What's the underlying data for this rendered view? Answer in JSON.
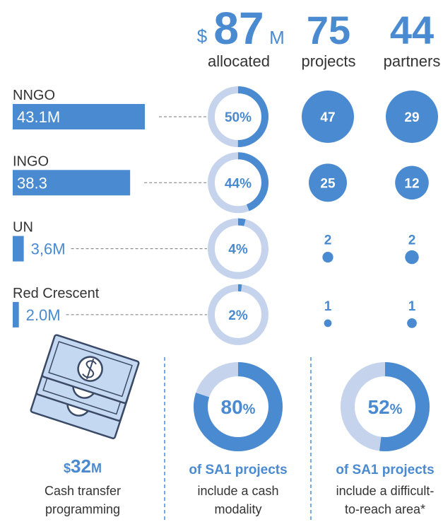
{
  "header": {
    "allocated": {
      "prefix": "$",
      "value": 87,
      "unit": "M",
      "label": "allocated"
    },
    "projects": {
      "value": 75,
      "label": "projects"
    },
    "partners": {
      "value": 44,
      "label": "partners"
    }
  },
  "rows": [
    {
      "name": "NNGO",
      "amount": 43.1,
      "amount_label": "43.1M",
      "share": 50,
      "share_label": "50%",
      "projects": 47,
      "partners": 29
    },
    {
      "name": "INGO",
      "amount": 38.3,
      "amount_label": "38.3",
      "share": 44,
      "share_label": "44%",
      "projects": 25,
      "partners": 12
    },
    {
      "name": "UN",
      "amount": 3.6,
      "amount_label": "3,6M",
      "share": 4,
      "share_label": "4%",
      "projects": 2,
      "partners": 2
    },
    {
      "name": "Red Crescent",
      "amount": 2.0,
      "amount_label": "2.0M",
      "share": 2,
      "share_label": "2%",
      "projects": 1,
      "partners": 1
    }
  ],
  "footer": {
    "cash": {
      "prefix": "$",
      "value": 32,
      "unit": "M",
      "lines": [
        "Cash transfer",
        "programming"
      ]
    },
    "cash_modality": {
      "value": 80,
      "unit": "%",
      "heading": "of SA1 projects",
      "lines": [
        "include a cash",
        "modality"
      ]
    },
    "hard_to_reach": {
      "value": 52,
      "unit": "%",
      "heading": "of SA1 projects",
      "lines": [
        "include a difficult-",
        "to-reach area*"
      ]
    }
  }
}
